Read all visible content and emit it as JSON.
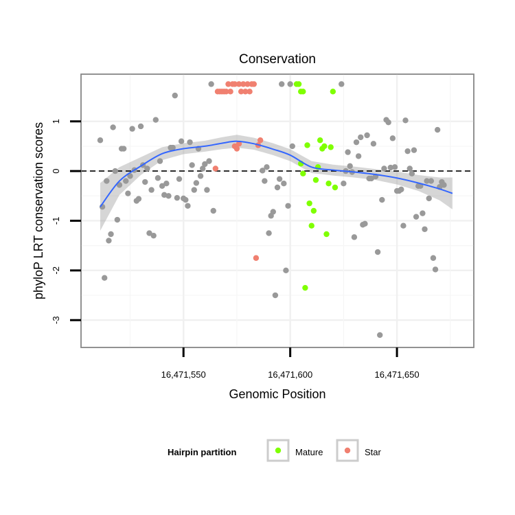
{
  "chart_data": {
    "type": "scatter",
    "title": "Conservation",
    "xlabel": "Genomic Position",
    "ylabel": "phyloP LRT conservation scores",
    "xlim": [
      16471502,
      16471686
    ],
    "ylim": [
      -3.55,
      1.95
    ],
    "x_ticks": [
      16471550,
      16471600,
      16471650
    ],
    "x_tick_labels": [
      "16,471,550",
      "16,471,600",
      "16,471,650"
    ],
    "y_ticks": [
      -3,
      -2,
      -1,
      0,
      1
    ],
    "y_tick_labels": [
      "-3",
      "-2",
      "-1",
      "0",
      "1"
    ],
    "reference_line": {
      "y": 0,
      "style": "dashed"
    },
    "legend": {
      "title": "Hairpin partition",
      "position": "bottom",
      "entries": [
        {
          "label": "Mature",
          "color": "#7fff00"
        },
        {
          "label": "Star",
          "color": "#f08070"
        }
      ]
    },
    "series": [
      {
        "name": "Other",
        "color": "#999999",
        "points": [
          [
            16471511,
            0.62
          ],
          [
            16471512,
            -0.72
          ],
          [
            16471513,
            -2.15
          ],
          [
            16471514,
            -0.2
          ],
          [
            16471515,
            -1.4
          ],
          [
            16471516,
            -1.27
          ],
          [
            16471517,
            0.88
          ],
          [
            16471518,
            0.0
          ],
          [
            16471519,
            -0.98
          ],
          [
            16471520,
            -0.28
          ],
          [
            16471521,
            0.45
          ],
          [
            16471522,
            0.45
          ],
          [
            16471523,
            -0.2
          ],
          [
            16471524,
            -0.45
          ],
          [
            16471525,
            -0.1
          ],
          [
            16471526,
            0.85
          ],
          [
            16471527,
            0.02
          ],
          [
            16471528,
            -0.6
          ],
          [
            16471529,
            -0.56
          ],
          [
            16471530,
            0.9
          ],
          [
            16471531,
            0.12
          ],
          [
            16471532,
            -0.22
          ],
          [
            16471533,
            0.05
          ],
          [
            16471534,
            -1.25
          ],
          [
            16471535,
            -0.38
          ],
          [
            16471536,
            -1.3
          ],
          [
            16471537,
            1.03
          ],
          [
            16471538,
            -0.14
          ],
          [
            16471539,
            0.2
          ],
          [
            16471540,
            -0.3
          ],
          [
            16471541,
            -0.48
          ],
          [
            16471542,
            -0.25
          ],
          [
            16471543,
            -0.5
          ],
          [
            16471544,
            0.47
          ],
          [
            16471545,
            0.47
          ],
          [
            16471546,
            1.52
          ],
          [
            16471547,
            -0.54
          ],
          [
            16471548,
            -0.16
          ],
          [
            16471549,
            0.6
          ],
          [
            16471550,
            -0.55
          ],
          [
            16471551,
            -0.58
          ],
          [
            16471552,
            -0.7
          ],
          [
            16471553,
            0.58
          ],
          [
            16471554,
            0.12
          ],
          [
            16471555,
            -0.38
          ],
          [
            16471556,
            -0.24
          ],
          [
            16471557,
            0.45
          ],
          [
            16471558,
            -0.1
          ],
          [
            16471559,
            0.05
          ],
          [
            16471560,
            0.14
          ],
          [
            16471561,
            -0.38
          ],
          [
            16471562,
            0.2
          ],
          [
            16471563,
            1.75
          ],
          [
            16471564,
            -0.8
          ],
          [
            16471587,
            0.01
          ],
          [
            16471588,
            -0.2
          ],
          [
            16471589,
            0.08
          ],
          [
            16471590,
            -1.25
          ],
          [
            16471591,
            -0.9
          ],
          [
            16471592,
            -0.82
          ],
          [
            16471593,
            -2.5
          ],
          [
            16471594,
            -0.33
          ],
          [
            16471595,
            -0.16
          ],
          [
            16471596,
            1.75
          ],
          [
            16471597,
            -0.25
          ],
          [
            16471598,
            -2.0
          ],
          [
            16471599,
            -0.7
          ],
          [
            16471600,
            1.75
          ],
          [
            16471601,
            0.5
          ],
          [
            16471624,
            1.75
          ],
          [
            16471625,
            -0.25
          ],
          [
            16471626,
            0.0
          ],
          [
            16471627,
            0.38
          ],
          [
            16471628,
            0.1
          ],
          [
            16471629,
            -0.02
          ],
          [
            16471630,
            -1.33
          ],
          [
            16471631,
            0.58
          ],
          [
            16471632,
            0.3
          ],
          [
            16471633,
            0.68
          ],
          [
            16471634,
            -1.08
          ],
          [
            16471635,
            -1.06
          ],
          [
            16471636,
            0.72
          ],
          [
            16471637,
            -0.15
          ],
          [
            16471638,
            -0.15
          ],
          [
            16471639,
            0.55
          ],
          [
            16471640,
            -0.11
          ],
          [
            16471641,
            -1.63
          ],
          [
            16471642,
            -3.3
          ],
          [
            16471643,
            -0.58
          ],
          [
            16471644,
            0.05
          ],
          [
            16471645,
            1.03
          ],
          [
            16471646,
            0.98
          ],
          [
            16471647,
            0.07
          ],
          [
            16471648,
            0.66
          ],
          [
            16471649,
            0.08
          ],
          [
            16471650,
            -0.4
          ],
          [
            16471651,
            -0.4
          ],
          [
            16471652,
            -0.37
          ],
          [
            16471653,
            -1.1
          ],
          [
            16471654,
            1.02
          ],
          [
            16471655,
            0.4
          ],
          [
            16471656,
            0.05
          ],
          [
            16471657,
            -0.05
          ],
          [
            16471658,
            0.42
          ],
          [
            16471659,
            -0.92
          ],
          [
            16471660,
            -0.3
          ],
          [
            16471661,
            -0.3
          ],
          [
            16471662,
            -0.85
          ],
          [
            16471663,
            -1.17
          ],
          [
            16471664,
            -0.2
          ],
          [
            16471665,
            -0.55
          ],
          [
            16471666,
            -0.2
          ],
          [
            16471667,
            -1.75
          ],
          [
            16471668,
            -1.98
          ],
          [
            16471669,
            0.83
          ],
          [
            16471670,
            -0.32
          ],
          [
            16471671,
            -0.22
          ],
          [
            16471672,
            -0.28
          ]
        ]
      },
      {
        "name": "Mature",
        "color": "#7fff00",
        "points": [
          [
            16471603,
            1.75
          ],
          [
            16471604,
            1.75
          ],
          [
            16471605,
            1.6
          ],
          [
            16471606,
            1.6
          ],
          [
            16471605,
            0.15
          ],
          [
            16471606,
            -0.05
          ],
          [
            16471608,
            0.52
          ],
          [
            16471609,
            -0.65
          ],
          [
            16471610,
            -1.1
          ],
          [
            16471611,
            -0.8
          ],
          [
            16471612,
            -0.18
          ],
          [
            16471613,
            0.08
          ],
          [
            16471614,
            0.62
          ],
          [
            16471615,
            0.45
          ],
          [
            16471616,
            0.5
          ],
          [
            16471617,
            -1.27
          ],
          [
            16471618,
            -0.25
          ],
          [
            16471619,
            0.48
          ],
          [
            16471620,
            1.6
          ],
          [
            16471621,
            -0.33
          ],
          [
            16471607,
            -2.35
          ]
        ]
      },
      {
        "name": "Star",
        "color": "#f08070",
        "points": [
          [
            16471565,
            0.05
          ],
          [
            16471566,
            1.6
          ],
          [
            16471567,
            1.6
          ],
          [
            16471568,
            1.6
          ],
          [
            16471569,
            1.6
          ],
          [
            16471570,
            1.6
          ],
          [
            16471571,
            1.75
          ],
          [
            16471572,
            1.6
          ],
          [
            16471573,
            1.75
          ],
          [
            16471574,
            0.5
          ],
          [
            16471575,
            0.45
          ],
          [
            16471576,
            1.75
          ],
          [
            16471577,
            1.6
          ],
          [
            16471578,
            1.75
          ],
          [
            16471579,
            1.6
          ],
          [
            16471580,
            1.75
          ],
          [
            16471581,
            1.6
          ],
          [
            16471582,
            1.75
          ],
          [
            16471583,
            1.75
          ],
          [
            16471584,
            -1.75
          ],
          [
            16471585,
            0.52
          ],
          [
            16471586,
            0.62
          ],
          [
            16471574,
            1.75
          ],
          [
            16471576,
            0.55
          ]
        ]
      }
    ],
    "smooth": {
      "x": [
        16471511,
        16471520,
        16471530,
        16471540,
        16471550,
        16471560,
        16471568,
        16471575,
        16471583,
        16471592,
        16471600,
        16471610,
        16471620,
        16471630,
        16471640,
        16471650,
        16471660,
        16471670,
        16471676
      ],
      "y": [
        -0.72,
        -0.2,
        0.1,
        0.35,
        0.45,
        0.5,
        0.56,
        0.6,
        0.55,
        0.44,
        0.32,
        0.08,
        0.02,
        -0.02,
        -0.07,
        -0.14,
        -0.24,
        -0.36,
        -0.45
      ],
      "se": [
        0.48,
        0.28,
        0.18,
        0.13,
        0.11,
        0.11,
        0.12,
        0.13,
        0.12,
        0.12,
        0.12,
        0.12,
        0.11,
        0.11,
        0.11,
        0.13,
        0.16,
        0.23,
        0.32
      ]
    }
  }
}
